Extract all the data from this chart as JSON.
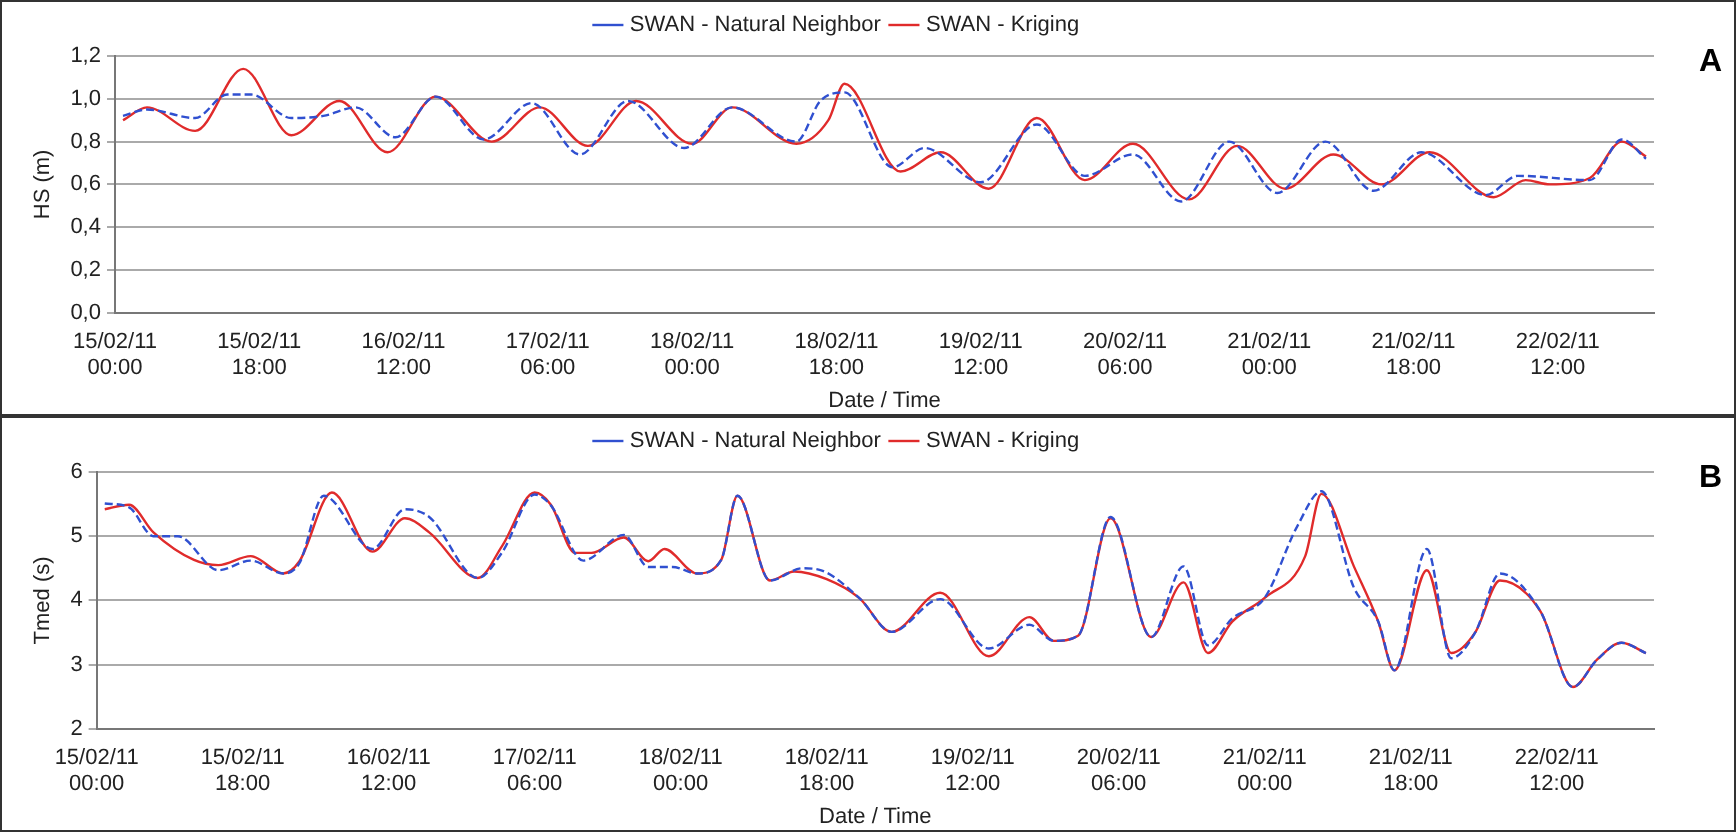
{
  "chart_data": [
    {
      "type": "line",
      "xlabel": "Date / Time",
      "ylabel": "HS (m)",
      "annotations": [
        "A"
      ],
      "grid": "y",
      "legend": "top",
      "marker": "none",
      "xlim": [
        "--02-15T00:00",
        "--02-23T00:00"
      ],
      "ylim": [
        0,
        1.2
      ],
      "xticks": [
        {
          "value": "--02-15T00:00",
          "label": "15/02/11 00:00"
        },
        {
          "value": "--02-15T18:00",
          "label": "15/02/11 18:00"
        },
        {
          "value": "--02-16T12:00",
          "label": "16/02/11 12:00"
        },
        {
          "value": "--02-17T06:00",
          "label": "17/02/11 06:00"
        },
        {
          "value": "--02-18T00:00",
          "label": "18/02/11 00:00"
        },
        {
          "value": "--02-18T18:00",
          "label": "18/02/11 18:00"
        },
        {
          "value": "--02-19T12:00",
          "label": "19/02/11 12:00"
        },
        {
          "value": "--02-20T06:00",
          "label": "20/02/11 06:00"
        },
        {
          "value": "--02-21T00:00",
          "label": "21/02/11 00:00"
        },
        {
          "value": "--02-21T18:00",
          "label": "21/02/11 18:00"
        },
        {
          "value": "--02-22T12:00",
          "label": "22/02/11 12:00"
        }
      ],
      "yticks": [
        {
          "value": 0,
          "label": "0,0"
        },
        {
          "value": 0.2,
          "label": "0,2"
        },
        {
          "value": 0.4,
          "label": "0,4"
        },
        {
          "value": 0.6,
          "label": "0,6"
        },
        {
          "value": 0.8,
          "label": "0,8"
        },
        {
          "value": 1,
          "label": "1,0"
        },
        {
          "value": 1.2,
          "label": "1,2"
        }
      ],
      "series": [
        {
          "name": "SWAN - Kriging",
          "color": "#e02b2b",
          "line_style": "solid",
          "x": [
            "--02-15T01:00",
            "--02-15T04:00",
            "--02-15T10:00",
            "--02-15T16:00",
            "--02-15T22:00",
            "--02-16T04:00",
            "--02-16T10:00",
            "--02-16T16:00",
            "--02-16T23:00",
            "--02-17T05:00",
            "--02-17T11:00",
            "--02-17T17:00",
            "--02-18T00:00",
            "--02-18T05:00",
            "--02-18T13:00",
            "--02-18T17:00",
            "--02-18T19:00",
            "--02-19T02:00",
            "--02-19T07:00",
            "--02-19T13:00",
            "--02-19T19:00",
            "--02-20T01:00",
            "--02-20T07:00",
            "--02-20T14:00",
            "--02-20T20:00",
            "--02-21T02:00",
            "--02-21T08:00",
            "--02-21T14:00",
            "--02-21T20:00",
            "--02-22T04:00",
            "--02-22T08:00",
            "--02-22T11:00",
            "--02-22T16:00",
            "--02-22T20:00",
            "--02-22T23:00"
          ],
          "values": [
            0.9,
            0.96,
            0.85,
            1.14,
            0.83,
            0.99,
            0.75,
            1.01,
            0.8,
            0.96,
            0.78,
            0.99,
            0.79,
            0.96,
            0.79,
            0.9,
            1.07,
            0.66,
            0.75,
            0.58,
            0.91,
            0.62,
            0.79,
            0.53,
            0.78,
            0.58,
            0.74,
            0.6,
            0.75,
            0.54,
            0.62,
            0.6,
            0.63,
            0.8,
            0.73
          ]
        },
        {
          "name": "SWAN - Natural Neighbor",
          "color": "#3050d0",
          "line_style": "dashed",
          "x": [
            "--02-15T01:00",
            "--02-15T04:00",
            "--02-15T10:00",
            "--02-15T14:00",
            "--02-15T17:00",
            "--02-15T22:00",
            "--02-16T02:00",
            "--02-16T06:00",
            "--02-16T11:00",
            "--02-16T16:00",
            "--02-16T22:00",
            "--02-17T04:00",
            "--02-17T10:00",
            "--02-17T16:00",
            "--02-17T23:00",
            "--02-18T05:00",
            "--02-18T13:00",
            "--02-18T16:00",
            "--02-18T19:00",
            "--02-19T01:00",
            "--02-19T05:00",
            "--02-19T12:00",
            "--02-19T19:00",
            "--02-20T01:00",
            "--02-20T07:00",
            "--02-20T13:00",
            "--02-20T19:00",
            "--02-21T01:00",
            "--02-21T07:00",
            "--02-21T13:00",
            "--02-21T19:00",
            "--02-22T03:00",
            "--02-22T07:00",
            "--02-22T16:00",
            "--02-22T20:00",
            "--02-22T23:00"
          ],
          "values": [
            0.92,
            0.95,
            0.91,
            1.02,
            1.02,
            0.91,
            0.92,
            0.96,
            0.82,
            1.01,
            0.81,
            0.98,
            0.74,
            0.99,
            0.77,
            0.96,
            0.8,
            0.99,
            1.03,
            0.68,
            0.77,
            0.61,
            0.88,
            0.64,
            0.74,
            0.52,
            0.8,
            0.56,
            0.8,
            0.57,
            0.75,
            0.55,
            0.64,
            0.62,
            0.81,
            0.72
          ]
        }
      ]
    },
    {
      "type": "line",
      "xlabel": "Date / Time",
      "ylabel": "Tmed (s)",
      "annotations": [
        "B"
      ],
      "grid": "y",
      "legend": "top",
      "marker": "none",
      "xlim": [
        "--02-15T00:00",
        "--02-23T00:00"
      ],
      "ylim": [
        2,
        6
      ],
      "yticks": [
        2,
        3,
        4,
        5,
        6
      ],
      "xticks": [
        {
          "value": "--02-15T00:00",
          "label": "15/02/11 00:00"
        },
        {
          "value": "--02-15T18:00",
          "label": "15/02/11 18:00"
        },
        {
          "value": "--02-16T12:00",
          "label": "16/02/11 12:00"
        },
        {
          "value": "--02-17T06:00",
          "label": "17/02/11 06:00"
        },
        {
          "value": "--02-18T00:00",
          "label": "18/02/11 00:00"
        },
        {
          "value": "--02-18T18:00",
          "label": "18/02/11 18:00"
        },
        {
          "value": "--02-19T12:00",
          "label": "19/02/11 12:00"
        },
        {
          "value": "--02-20T06:00",
          "label": "20/02/11 06:00"
        },
        {
          "value": "--02-21T00:00",
          "label": "21/02/11 00:00"
        },
        {
          "value": "--02-21T18:00",
          "label": "21/02/11 18:00"
        },
        {
          "value": "--02-22T12:00",
          "label": "22/02/11 12:00"
        }
      ],
      "series": [
        {
          "name": "SWAN - Kriging",
          "color": "#e02b2b",
          "line_style": "solid",
          "x": [
            "--02-15T01:00",
            "--02-15T04:00",
            "--02-15T07:00",
            "--02-15T12:00",
            "--02-15T15:00",
            "--02-15T19:00",
            "--02-15T23:00",
            "--02-16T01:00",
            "--02-16T05:00",
            "--02-16T10:00",
            "--02-16T14:00",
            "--02-16T17:00",
            "--02-16T23:00",
            "--02-17T02:00",
            "--02-17T06:00",
            "--02-17T08:00",
            "--02-17T11:00",
            "--02-17T13:00",
            "--02-17T17:00",
            "--02-17T20:00",
            "--02-17T22:00",
            "--02-18T02:00",
            "--02-18T05:00",
            "--02-18T07:00",
            "--02-18T11:00",
            "--02-18T14:00",
            "--02-18T18:00",
            "--02-18T22:00",
            "--02-19T02:00",
            "--02-19T08:00",
            "--02-19T14:00",
            "--02-19T19:00",
            "--02-19T22:00",
            "--02-20T01:00",
            "--02-20T05:00",
            "--02-20T10:00",
            "--02-20T14:00",
            "--02-20T17:00",
            "--02-20T20:00",
            "--02-21T00:00",
            "--02-21T05:00",
            "--02-21T07:00",
            "--02-21T11:00",
            "--02-21T14:00",
            "--02-21T16:00",
            "--02-21T20:00",
            "--02-21T23:00",
            "--02-22T02:00",
            "--02-22T05:00",
            "--02-22T10:00",
            "--02-22T14:00",
            "--02-22T17:00",
            "--02-22T20:00",
            "--02-22T23:00"
          ],
          "values": [
            5.42,
            5.49,
            5.06,
            4.63,
            4.55,
            4.69,
            4.42,
            4.61,
            5.68,
            4.76,
            5.28,
            5.06,
            4.35,
            4.85,
            5.68,
            5.49,
            4.74,
            4.74,
            4.98,
            4.61,
            4.8,
            4.42,
            4.63,
            5.63,
            4.31,
            4.45,
            4.33,
            4.04,
            3.51,
            4.12,
            3.13,
            3.74,
            3.37,
            3.45,
            5.28,
            3.43,
            4.28,
            3.18,
            3.67,
            4.04,
            4.69,
            5.66,
            4.53,
            3.67,
            2.91,
            4.47,
            3.18,
            3.51,
            4.31,
            3.83,
            2.65,
            3.08,
            3.34,
            3.18
          ]
        },
        {
          "name": "SWAN - Natural Neighbor",
          "color": "#3050d0",
          "line_style": "dashed",
          "x": [
            "--02-15T01:00",
            "--02-15T04:00",
            "--02-15T07:00",
            "--02-15T10:00",
            "--02-15T15:00",
            "--02-15T19:00",
            "--02-15T23:00",
            "--02-16T01:00",
            "--02-16T04:00",
            "--02-16T10:00",
            "--02-16T14:00",
            "--02-16T17:00",
            "--02-16T23:00",
            "--02-17T02:00",
            "--02-17T06:00",
            "--02-17T08:00",
            "--02-17T12:00",
            "--02-17T17:00",
            "--02-17T20:00",
            "--02-17T23:00",
            "--02-18T02:00",
            "--02-18T05:00",
            "--02-18T07:00",
            "--02-18T11:00",
            "--02-18T15:00",
            "--02-18T17:00",
            "--02-18T22:00",
            "--02-19T02:00",
            "--02-19T08:00",
            "--02-19T14:00",
            "--02-19T19:00",
            "--02-19T22:00",
            "--02-20T01:00",
            "--02-20T05:00",
            "--02-20T10:00",
            "--02-20T14:00",
            "--02-20T17:00",
            "--02-20T20:00",
            "--02-21T00:00",
            "--02-21T04:00",
            "--02-21T07:00",
            "--02-21T11:00",
            "--02-21T14:00",
            "--02-21T16:00",
            "--02-21T20:00",
            "--02-21T23:00",
            "--02-22T02:00",
            "--02-22T05:00",
            "--02-22T10:00",
            "--02-22T14:00",
            "--02-22T17:00",
            "--02-22T20:00",
            "--02-22T23:00"
          ],
          "values": [
            5.51,
            5.45,
            5.0,
            5.0,
            4.47,
            4.62,
            4.42,
            4.58,
            5.63,
            4.8,
            5.42,
            5.3,
            4.35,
            4.75,
            5.65,
            5.48,
            4.62,
            5.02,
            4.52,
            4.52,
            4.42,
            4.63,
            5.63,
            4.31,
            4.5,
            4.48,
            4.04,
            3.51,
            4.02,
            3.25,
            3.62,
            3.37,
            3.45,
            5.3,
            3.43,
            4.53,
            3.3,
            3.72,
            4.04,
            5.15,
            5.7,
            4.2,
            3.67,
            2.91,
            4.8,
            3.1,
            3.51,
            4.42,
            3.83,
            2.65,
            3.08,
            3.34,
            3.18
          ]
        }
      ]
    }
  ]
}
